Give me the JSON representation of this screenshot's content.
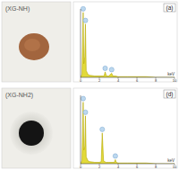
{
  "chart_data": [
    {
      "type": "area",
      "title": "(a)",
      "annotation": "(XG-NH)",
      "x_label": "keV",
      "x": [
        0,
        0.15,
        0.28,
        0.35,
        0.45,
        0.52,
        0.6,
        0.8,
        1.0,
        1.5,
        2.0,
        2.5,
        2.62,
        2.75,
        3.0,
        3.31,
        3.45,
        3.7,
        4.0,
        5,
        6,
        7,
        8,
        9,
        10
      ],
      "values": [
        0,
        5,
        95,
        20,
        30,
        78,
        10,
        4,
        3,
        2,
        2,
        2,
        8,
        2,
        2,
        6,
        2,
        2,
        1,
        1,
        1,
        1,
        0,
        0,
        0
      ],
      "color": "#e2da3a",
      "xlim": [
        0,
        10
      ],
      "xticks": [
        0,
        2,
        4,
        6,
        8,
        10
      ],
      "ylim": [
        0,
        100
      ],
      "tick_labels": "x"
    },
    {
      "type": "area",
      "title": "(d)",
      "annotation": "(XG-NH2)",
      "x_label": "keV",
      "x": [
        0,
        0.15,
        0.28,
        0.35,
        0.45,
        0.52,
        0.6,
        0.8,
        1.0,
        1.5,
        2.0,
        2.2,
        2.31,
        2.45,
        2.7,
        3.0,
        3.6,
        3.7,
        3.8,
        4.0,
        5,
        6,
        7,
        8,
        9,
        10
      ],
      "values": [
        0,
        5,
        90,
        20,
        25,
        70,
        10,
        4,
        3,
        2,
        2,
        3,
        45,
        4,
        2,
        2,
        2,
        6,
        2,
        1,
        1,
        1,
        1,
        0,
        0,
        0
      ],
      "color": "#e2da3a",
      "xlim": [
        0,
        10
      ],
      "xticks": [
        0,
        2,
        4,
        6,
        8,
        10
      ],
      "ylim": [
        0,
        100
      ],
      "tick_labels": "x"
    }
  ]
}
